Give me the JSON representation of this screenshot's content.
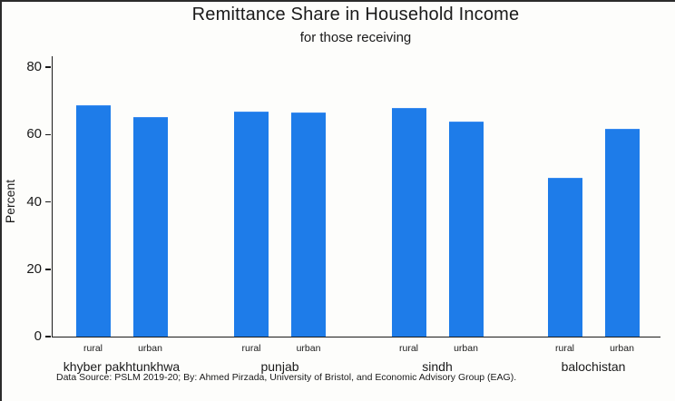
{
  "chart_data": {
    "type": "bar",
    "title": "Remittance Share in Household Income",
    "subtitle": "for those receiving",
    "ylabel": "Percent",
    "ylim": [
      0,
      80
    ],
    "yticks": [
      0,
      20,
      40,
      60,
      80
    ],
    "grid": false,
    "legend": "none",
    "bar_color": "#1e7ce9",
    "groups": [
      {
        "label": "khyber pakhtunkhwa",
        "bars": [
          {
            "label": "rural",
            "value": 68.5
          },
          {
            "label": "urban",
            "value": 65.0
          }
        ]
      },
      {
        "label": "punjab",
        "bars": [
          {
            "label": "rural",
            "value": 66.5
          },
          {
            "label": "urban",
            "value": 66.2
          }
        ]
      },
      {
        "label": "sindh",
        "bars": [
          {
            "label": "rural",
            "value": 67.5
          },
          {
            "label": "urban",
            "value": 63.5
          }
        ]
      },
      {
        "label": "balochistan",
        "bars": [
          {
            "label": "rural",
            "value": 47.0
          },
          {
            "label": "urban",
            "value": 61.3
          }
        ]
      }
    ],
    "note": "Data Source: PSLM 2019-20; By: Ahmed Pirzada, University of Bristol, and Economic Advisory Group (EAG)."
  }
}
